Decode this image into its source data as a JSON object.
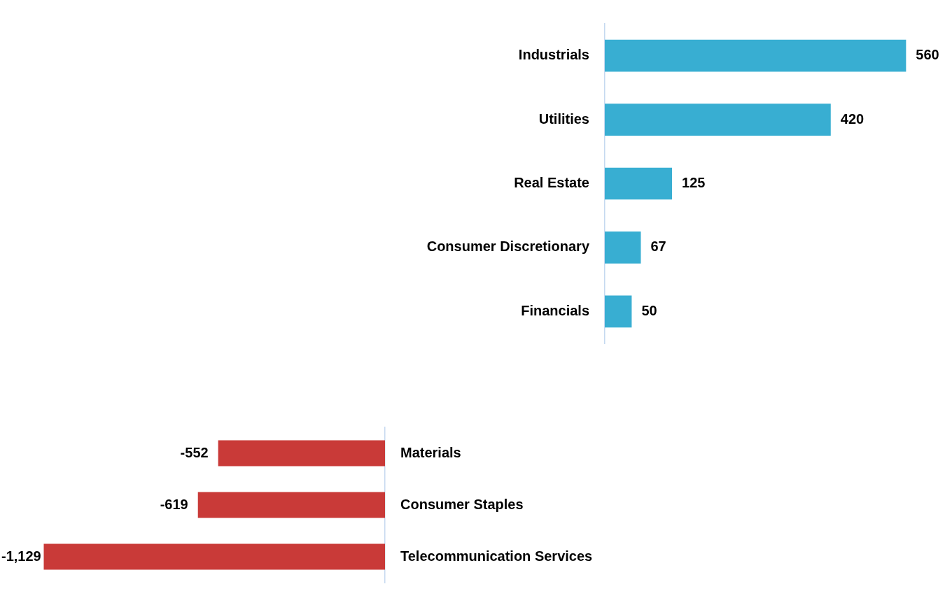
{
  "chart_data": [
    {
      "type": "bar",
      "orientation": "horizontal",
      "categories": [
        "Industrials",
        "Utilities",
        "Real Estate",
        "Consumer Discretionary",
        "Financials"
      ],
      "values": [
        560,
        420,
        125,
        67,
        50
      ],
      "color": "#38aed2",
      "value_labels": [
        "560",
        "420",
        "125",
        "67",
        "50"
      ],
      "tick_labels": "y",
      "grid": false,
      "legend": false
    },
    {
      "type": "bar",
      "orientation": "horizontal",
      "categories": [
        "Materials",
        "Consumer Staples",
        "Telecommunication Services"
      ],
      "values": [
        -552,
        -619,
        -1129
      ],
      "color": "#c93a38",
      "value_labels": [
        "-552",
        "-619",
        "-1,129"
      ],
      "tick_labels": "y",
      "grid": false,
      "legend": false
    }
  ]
}
